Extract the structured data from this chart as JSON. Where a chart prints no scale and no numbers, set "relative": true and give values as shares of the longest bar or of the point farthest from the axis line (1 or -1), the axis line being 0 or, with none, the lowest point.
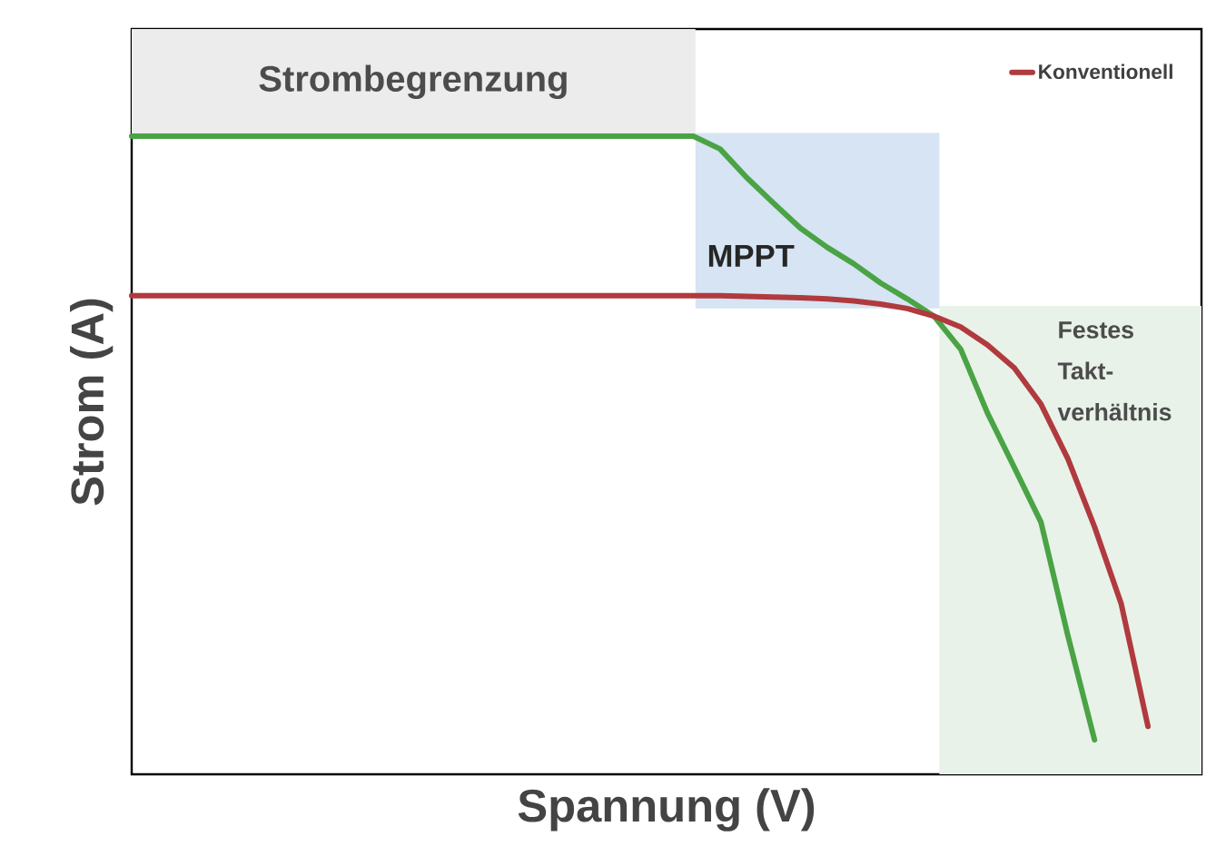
{
  "chart_data": {
    "type": "line",
    "xlabel": "Spannung (V)",
    "ylabel": "Strom (A)",
    "relative": true,
    "legend": "top right",
    "categories": [
      null,
      null,
      null,
      null,
      null,
      null,
      null,
      null,
      null,
      null,
      null,
      null,
      null,
      null,
      null,
      null,
      null,
      null,
      null,
      null,
      null,
      null,
      null,
      null,
      null,
      null,
      null,
      null,
      null,
      null,
      null,
      null,
      null,
      null,
      null,
      null,
      null,
      null,
      null,
      null,
      null
    ],
    "series": [
      {
        "color": "#4aa345",
        "values": [
          1,
          1,
          1,
          1,
          1,
          1,
          1,
          1,
          1,
          1,
          1,
          1,
          1,
          1,
          1,
          1,
          1,
          1,
          1,
          1,
          1,
          1,
          0.98,
          0.935,
          0.895,
          0.856,
          0.826,
          0.8,
          0.77,
          0.745,
          0.718,
          0.666,
          0.566,
          0.481,
          0.395,
          0.218,
          0.054,
          null,
          null,
          null,
          null
        ]
      },
      {
        "name": "Konventionell",
        "color": "#b03a3e",
        "values": [
          0.75,
          0.75,
          0.75,
          0.75,
          0.75,
          0.75,
          0.75,
          0.75,
          0.75,
          0.75,
          0.75,
          0.75,
          0.75,
          0.75,
          0.75,
          0.75,
          0.75,
          0.75,
          0.75,
          0.75,
          0.75,
          0.75,
          0.75,
          0.749,
          0.748,
          0.747,
          0.745,
          0.742,
          0.737,
          0.73,
          0.718,
          0.701,
          0.673,
          0.637,
          0.58,
          0.495,
          0.388,
          0.267,
          0.075,
          null,
          null
        ]
      }
    ],
    "bands": [
      {
        "axis": "y",
        "from": 0.73,
        "to": 1.005,
        "label": "MPPT",
        "color": "#d6e4f3"
      }
    ],
    "annotations": [
      "Strombegrenzung",
      "Festes Takt-verhältnis"
    ]
  }
}
